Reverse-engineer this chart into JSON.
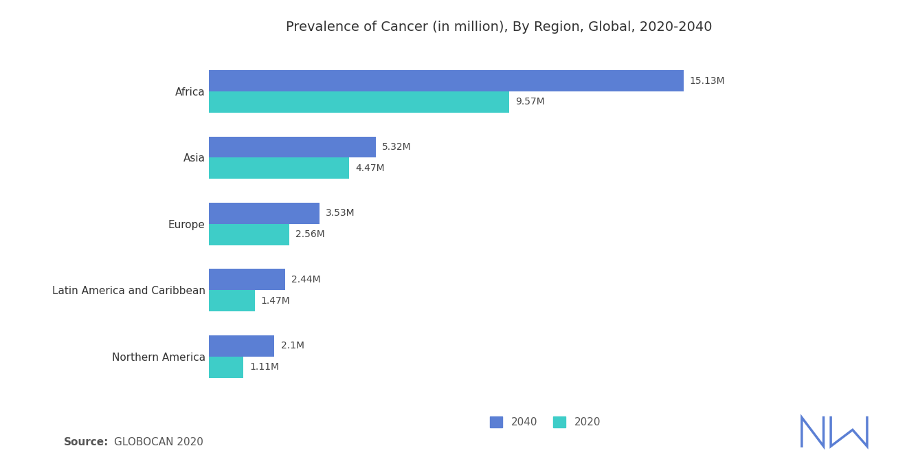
{
  "title": "Prevalence of Cancer (in million), By Region, Global, 2020-2040",
  "categories": [
    "Africa",
    "Asia",
    "Europe",
    "Latin America and Caribbean",
    "Northern America"
  ],
  "values_2040": [
    15.13,
    5.32,
    3.53,
    2.44,
    2.1
  ],
  "values_2020": [
    9.57,
    4.47,
    2.56,
    1.47,
    1.11
  ],
  "labels_2040": [
    "15.13M",
    "5.32M",
    "3.53M",
    "2.44M",
    "2.1M"
  ],
  "labels_2020": [
    "9.57M",
    "4.47M",
    "2.56M",
    "1.47M",
    "1.11M"
  ],
  "color_2040": "#5b7fd4",
  "color_2020": "#3ecdc8",
  "background_color": "#ffffff",
  "legend_labels": [
    "2040",
    "2020"
  ],
  "bar_height": 0.32,
  "xlim": [
    0,
    18.5
  ],
  "title_fontsize": 14,
  "label_fontsize": 10,
  "tick_fontsize": 11,
  "source_fontsize": 11
}
